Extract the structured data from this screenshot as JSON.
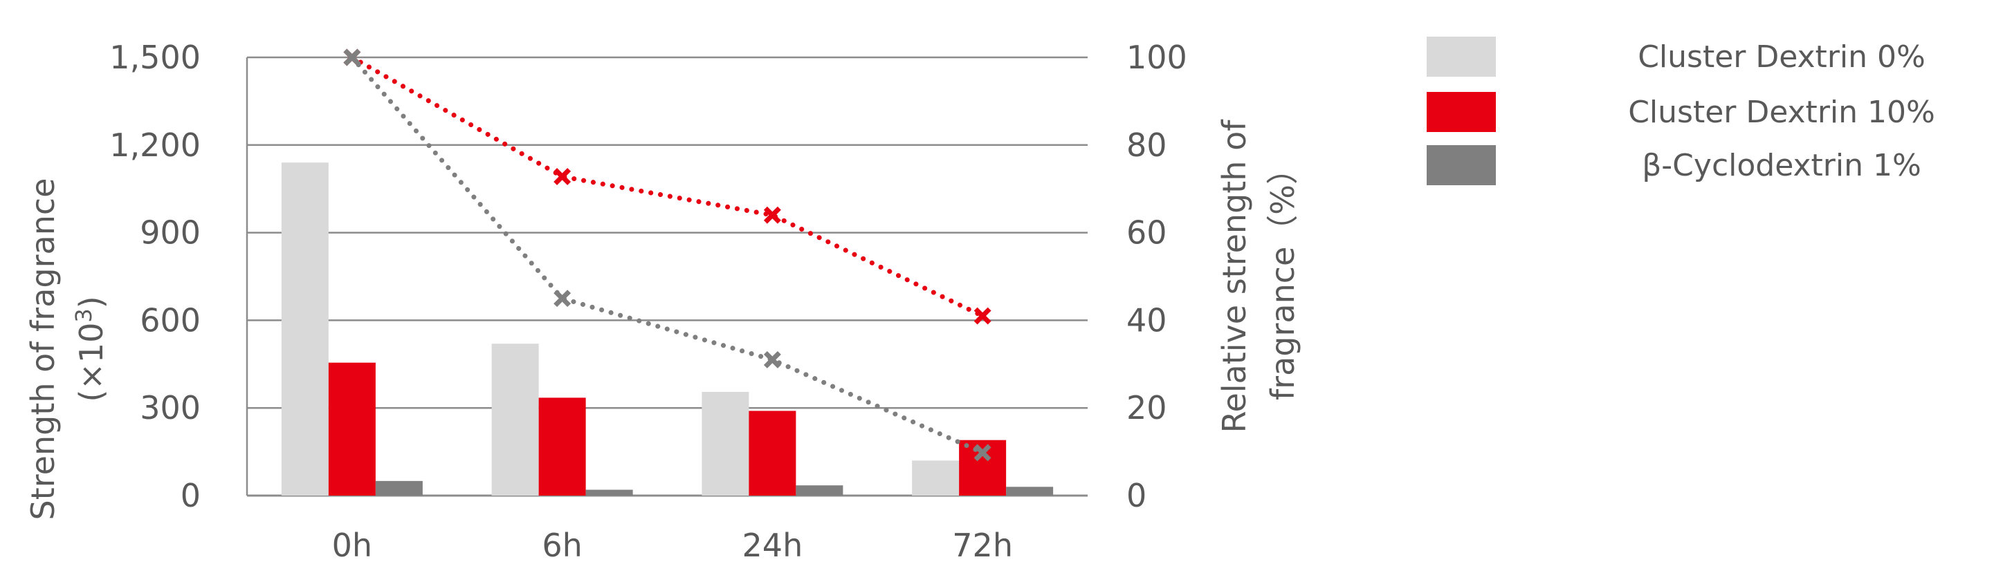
{
  "chart_data": {
    "type": "bar",
    "categories": [
      "0h",
      "6h",
      "24h",
      "72h"
    ],
    "series": [
      {
        "name": "Cluster Dextrin  0%",
        "values": [
          1140,
          520,
          355,
          120
        ],
        "color": "#d9d9d9"
      },
      {
        "name": "Cluster Dextrin  10%",
        "values": [
          455,
          335,
          290,
          190
        ],
        "color": "#e60012"
      },
      {
        "name": "β-Cyclodextrin  1%",
        "values": [
          50,
          20,
          35,
          30
        ],
        "color": "#7f7f7f"
      }
    ],
    "line_series": [
      {
        "series_name": "Cluster Dextrin  10%",
        "axis": "right",
        "values": [
          100,
          72.8,
          64,
          41
        ],
        "color": "#e60012",
        "style": "dotted",
        "marker": "x"
      },
      {
        "series_name": "β-Cyclodextrin  1%",
        "axis": "right",
        "values": [
          100,
          45,
          31,
          9.8
        ],
        "color": "#7f7f7f",
        "style": "dotted",
        "marker": "x"
      }
    ],
    "y_left": {
      "label_line1": "Strength of fragrance",
      "label_line2_prefix": "(×10",
      "label_line2_sup": "3",
      "label_line2_suffix": ")",
      "ylim": [
        0,
        1500
      ],
      "ticks": [
        "0",
        "300",
        "600",
        "900",
        "1,200",
        "1,500"
      ]
    },
    "y_right": {
      "label_line1": "Relative strength of",
      "label_line2": "fragrance（%）",
      "ylim": [
        0,
        100
      ],
      "ticks": [
        "0",
        "20",
        "40",
        "60",
        "80",
        "100"
      ]
    },
    "grid": true,
    "legend_position": "top-right"
  }
}
